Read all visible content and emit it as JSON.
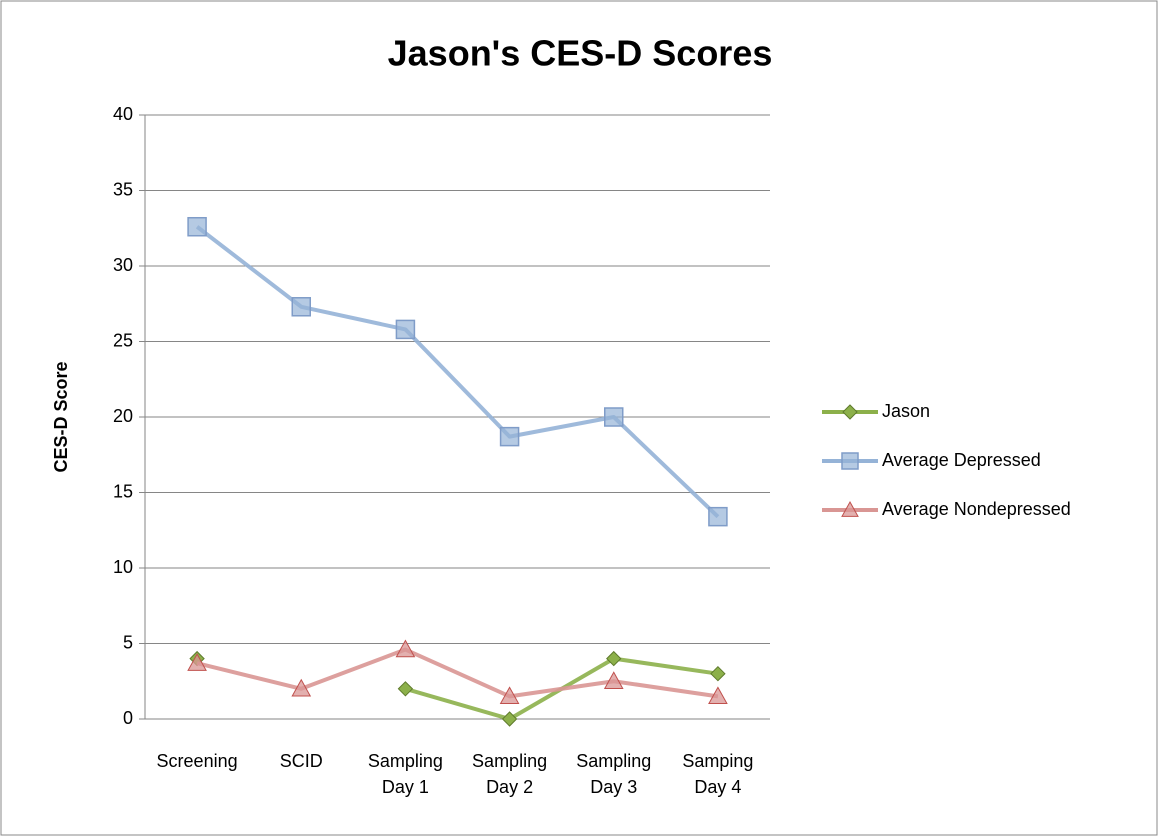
{
  "chart_data": {
    "type": "line",
    "title": "Jason's CES-D Scores",
    "y_label": "CES-D Score",
    "categories": [
      "Screening",
      "SCID",
      "Sampling Day 1",
      "Sampling Day 2",
      "Sampling Day 3",
      "Samping Day 4"
    ],
    "series": [
      {
        "name": "Jason",
        "color": "#8cb04a",
        "marker": "diamond",
        "values": [
          4,
          null,
          2,
          0,
          4,
          3
        ]
      },
      {
        "name": "Average Depressed",
        "color": "#95b3d7",
        "marker": "square",
        "values": [
          32.6,
          27.3,
          25.8,
          18.7,
          20,
          13.4
        ]
      },
      {
        "name": "Average Nondepressed",
        "color": "#d99694",
        "marker": "triangle",
        "values": [
          3.7,
          2,
          4.6,
          1.5,
          2.5,
          1.5
        ]
      }
    ],
    "ylim": [
      0,
      40
    ],
    "yticks": [
      0,
      5,
      10,
      15,
      20,
      25,
      30,
      35,
      40
    ],
    "grid": true,
    "legend": "right"
  }
}
